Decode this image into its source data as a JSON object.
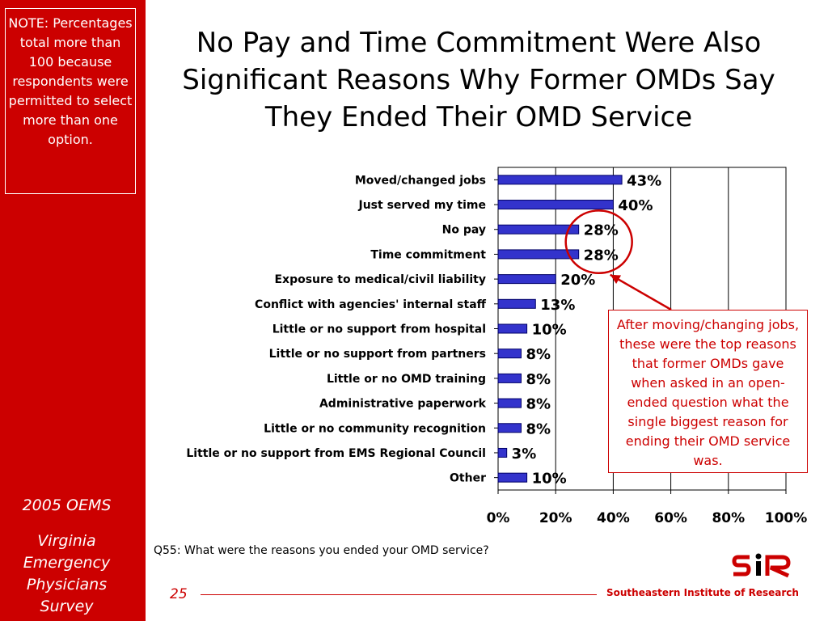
{
  "sidebar": {
    "note": "NOTE: Percentages total more than 100 because respondents were permitted to select more than one option.",
    "year": "2005 OEMS",
    "survey": "Virginia Emergency Physicians Survey"
  },
  "title": "No Pay and Time Commitment Were Also Significant Reasons Why Former OMDs Say They Ended Their OMD Service",
  "callout": "After moving/changing jobs, these were the top reasons that former OMDs gave when asked in an open-ended question what the single biggest reason for ending their OMD service was.",
  "question": "Q55: What were the reasons you ended your OMD service?",
  "footer": {
    "page": "25",
    "org": "Southeastern Institute of Research",
    "logo_text": "SIR"
  },
  "colors": {
    "brand_red": "#cc0000",
    "bar_fill": "#3333cc",
    "bar_stroke": "#000066"
  },
  "chart_data": {
    "type": "bar",
    "orientation": "horizontal",
    "categories": [
      "Moved/changed jobs",
      "Just served my time",
      "No pay",
      "Time commitment",
      "Exposure to medical/civil liability",
      "Conflict with agencies' internal staff",
      "Little or no support from hospital",
      "Little or no support from partners",
      "Little or no OMD training",
      "Administrative paperwork",
      "Little or no community recognition",
      "Little or no support from EMS Regional Council",
      "Other"
    ],
    "values": [
      43,
      40,
      28,
      28,
      20,
      13,
      10,
      8,
      8,
      8,
      8,
      3,
      10
    ],
    "value_labels": [
      "43%",
      "40%",
      "28%",
      "28%",
      "20%",
      "13%",
      "10%",
      "8%",
      "8%",
      "8%",
      "8%",
      "3%",
      "10%"
    ],
    "xlim": [
      0,
      100
    ],
    "x_ticks": [
      "0%",
      "20%",
      "40%",
      "60%",
      "80%",
      "100%"
    ],
    "grid": true,
    "highlighted_categories": [
      "No pay",
      "Time commitment"
    ]
  }
}
